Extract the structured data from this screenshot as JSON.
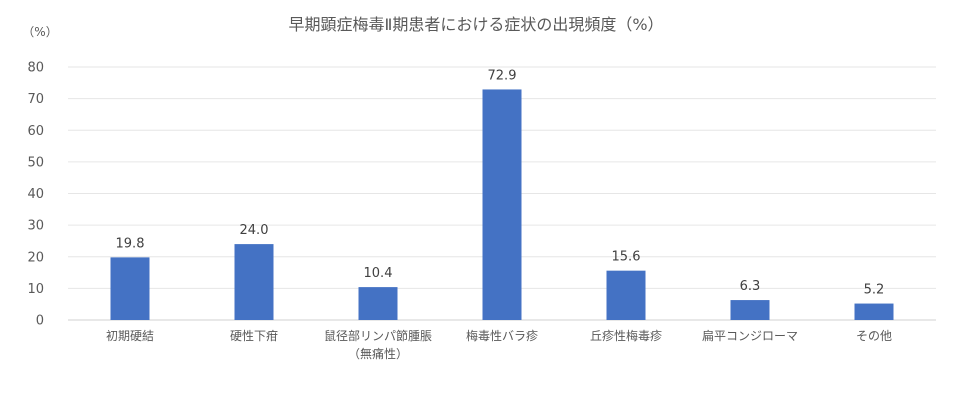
{
  "chart_data": {
    "type": "bar",
    "title": "早期顕症梅毒Ⅱ期患者における症状の出現頻度（%）",
    "unit_label": "（%）",
    "categories": [
      [
        "初期硬結"
      ],
      [
        "硬性下疳"
      ],
      [
        "鼠径部リンパ節腫脹",
        "（無痛性）"
      ],
      [
        "梅毒性バラ疹"
      ],
      [
        "丘疹性梅毒疹"
      ],
      [
        "扁平コンジローマ"
      ],
      [
        "その他"
      ]
    ],
    "values": [
      19.8,
      24.0,
      10.4,
      72.9,
      15.6,
      6.3,
      5.2
    ],
    "value_labels": [
      "19.8",
      "24.0",
      "10.4",
      "72.9",
      "15.6",
      "6.3",
      "5.2"
    ],
    "yticks": [
      "0",
      "10",
      "20",
      "30",
      "40",
      "50",
      "60",
      "70",
      "80"
    ],
    "ylim": [
      0,
      80
    ],
    "grid": true,
    "bar_color": "#4472c4"
  }
}
